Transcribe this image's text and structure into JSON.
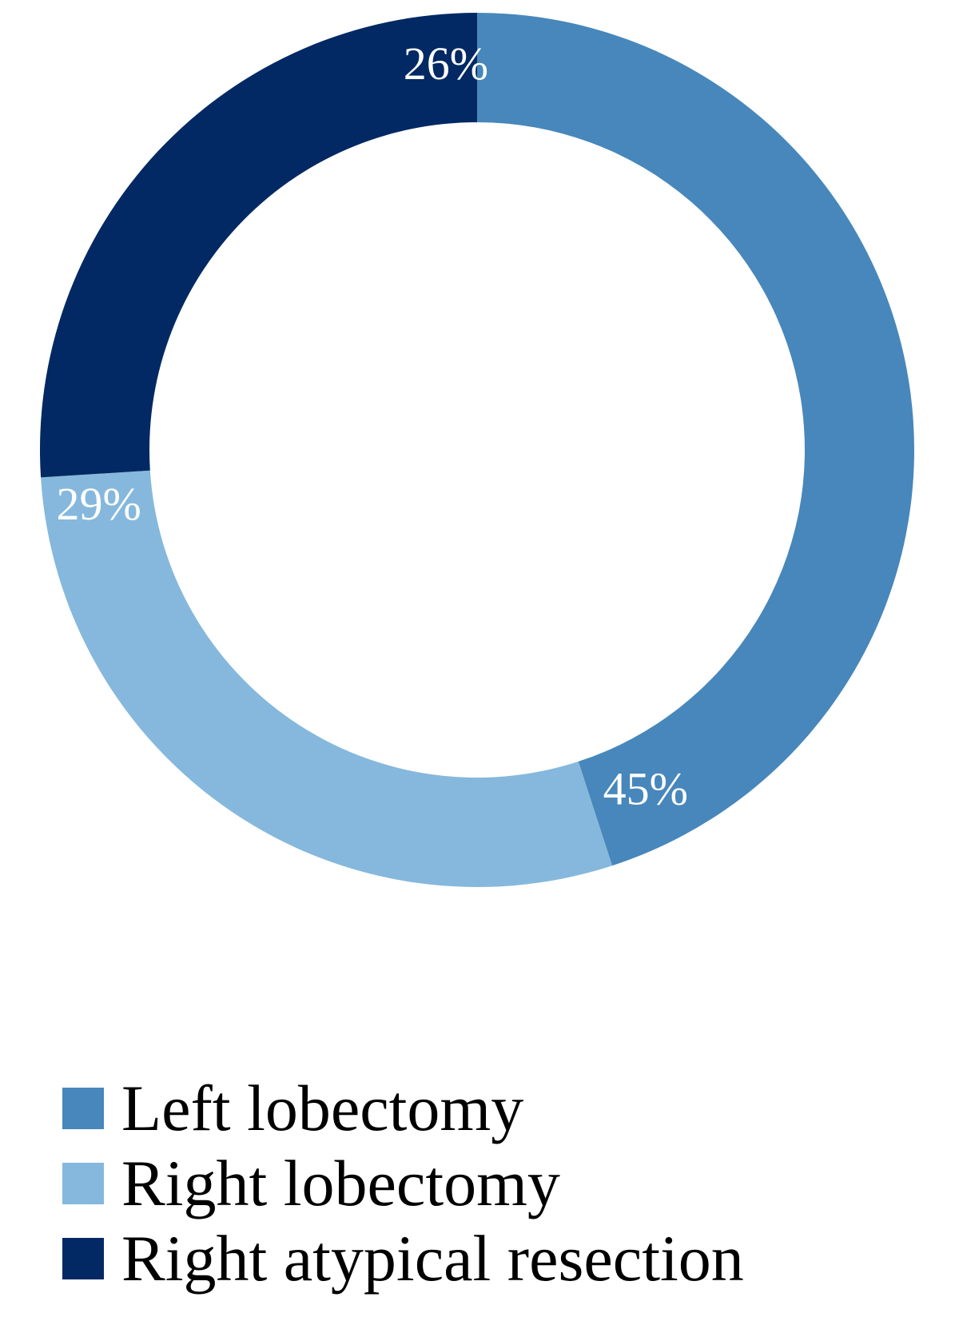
{
  "chart_data": {
    "type": "pie",
    "variant": "donut",
    "title": "",
    "start_angle_deg": 0,
    "direction": "clockwise",
    "legend_position": "bottom",
    "slices": [
      {
        "label": "Left lobectomy",
        "value": 45,
        "display": "45%",
        "color": "#4787BB"
      },
      {
        "label": "Right lobectomy",
        "value": 29,
        "display": "29%",
        "color": "#85B8DC"
      },
      {
        "label": "Right atypical resection",
        "value": 26,
        "display": "26%",
        "color": "#022964"
      }
    ]
  }
}
